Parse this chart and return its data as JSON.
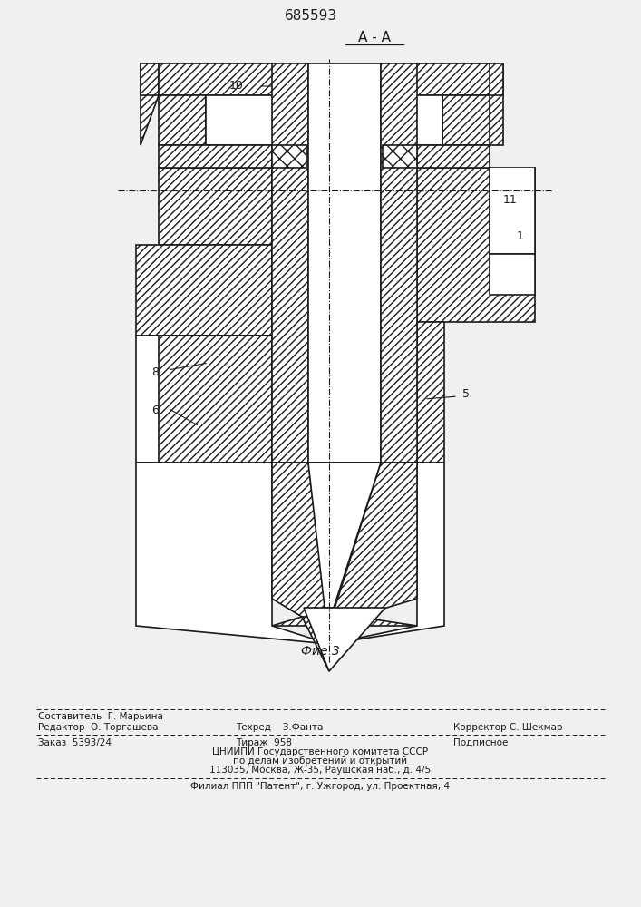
{
  "patent_number": "685593",
  "section_label": "А - А",
  "fig_label": "Фие 3",
  "bg_color": "#f0f0f0",
  "line_color": "#1a1a1a",
  "footer": {
    "sestavitel": "Составитель  Г. Марьина",
    "redaktor": "Редактор  О. Торгашева",
    "tehred_label": "Техред",
    "tehred_val": "З.Фанта",
    "korrektor": "Корректор С. Шекмар",
    "zakaz": "Заказ  5393/24",
    "tirazh": "Тираж  958",
    "podpisnoe": "Подписное",
    "line3": "ЦНИИПИ Государственного комитета СССР",
    "line4": "по делам изобретений и открытий",
    "line5": "113035, Москва, Ж-35, Раушская наб., д. 4/5",
    "line6": "Филиал ППП \"Патент\", г. Ужгород, ул. Проектная, 4"
  }
}
